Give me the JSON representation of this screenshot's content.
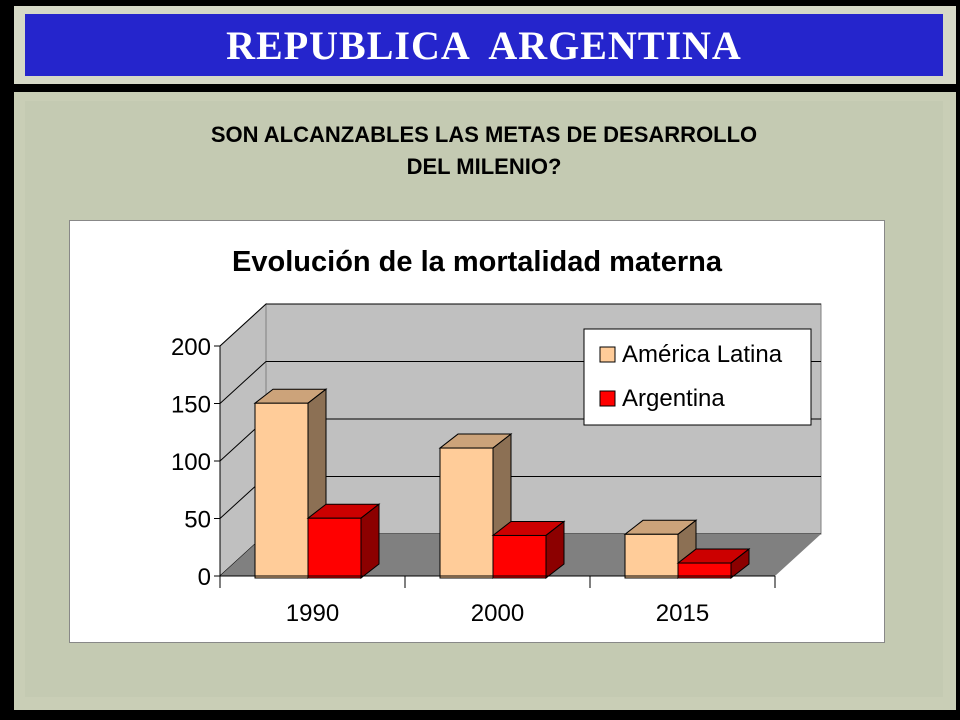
{
  "header": {
    "title": "REPUBLICA  ARGENTINA"
  },
  "question": {
    "lines": [
      "SON ALCANZABLES LAS METAS DE DESARROLLO",
      "DEL MILENIO?"
    ]
  },
  "chart_data": {
    "type": "bar",
    "title": "Evolución de la mortalidad materna",
    "categories": [
      "1990",
      "2000",
      "2015"
    ],
    "series": [
      {
        "name": "América Latina",
        "values": [
          152,
          113,
          38
        ],
        "color": "#ffcc99"
      },
      {
        "name": "Argentina",
        "values": [
          52,
          37,
          13
        ],
        "color": "#ff0000"
      }
    ],
    "ylim": [
      0,
      200
    ],
    "yticks": [
      0,
      50,
      100,
      150,
      200
    ],
    "grid": true,
    "legend_position": "top-right",
    "colors": {
      "wall": "#c0c0c0",
      "floor": "#808080"
    }
  }
}
